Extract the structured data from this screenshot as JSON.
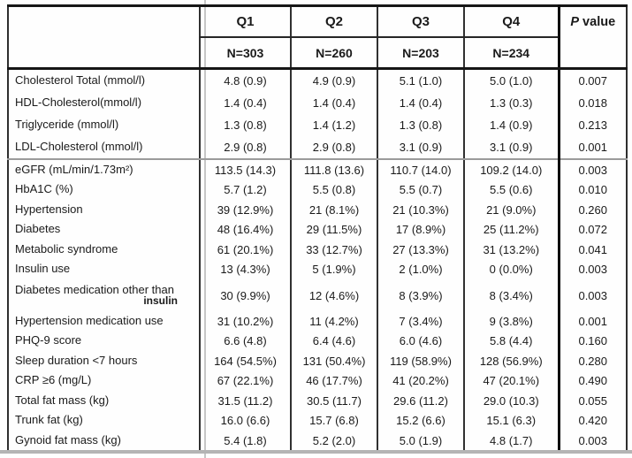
{
  "table": {
    "quartiles": [
      {
        "label": "Q1",
        "n": "N=303"
      },
      {
        "label": "Q2",
        "n": "N=260"
      },
      {
        "label": "Q3",
        "n": "N=203"
      },
      {
        "label": "Q4",
        "n": "N=234"
      }
    ],
    "p_header": {
      "italic": "P",
      "rest": " value"
    },
    "rows": [
      {
        "label": "Cholesterol Total (mmol/l)",
        "q1": "4.8 (0.9)",
        "q2": "4.9 (0.9)",
        "q3": "5.1 (1.0)",
        "q4": "5.0 (1.0)",
        "p": "0.007"
      },
      {
        "label": "HDL-Cholesterol(mmol/l)",
        "q1": "1.4 (0.4)",
        "q2": "1.4 (0.4)",
        "q3": "1.4 (0.4)",
        "q4": "1.3 (0.3)",
        "p": "0.018"
      },
      {
        "label": "Triglyceride (mmol/l)",
        "q1": "1.3 (0.8)",
        "q2": "1.4 (1.2)",
        "q3": "1.3 (0.8)",
        "q4": "1.4 (0.9)",
        "p": "0.213"
      },
      {
        "label": "LDL-Cholesterol (mmol/l)",
        "q1": "2.9 (0.8)",
        "q2": "2.9 (0.8)",
        "q3": "3.1 (0.9)",
        "q4": "3.1 (0.9)",
        "p": "0.001",
        "section_end": true
      },
      {
        "label": "eGFR (mL/min/1.73m²)",
        "q1": "113.5 (14.3)",
        "q2": "111.8 (13.6)",
        "q3": "110.7 (14.0)",
        "q4": "109.2 (14.0)",
        "p": "0.003"
      },
      {
        "label": "HbA1C (%)",
        "q1": "5.7 (1.2)",
        "q2": "5.5 (0.8)",
        "q3": "5.5 (0.7)",
        "q4": "5.5 (0.6)",
        "p": "0.010"
      },
      {
        "label": "Hypertension",
        "q1": "39 (12.9%)",
        "q2": "21 (8.1%)",
        "q3": "21 (10.3%)",
        "q4": "21 (9.0%)",
        "p": "0.260"
      },
      {
        "label": "Diabetes",
        "q1": "48 (16.4%)",
        "q2": "29 (11.5%)",
        "q3": "17 (8.9%)",
        "q4": "25 (11.2%)",
        "p": "0.072"
      },
      {
        "label": "Metabolic syndrome",
        "q1": "61 (20.1%)",
        "q2": "33 (12.7%)",
        "q3": "27 (13.3%)",
        "q4": "31 (13.2%)",
        "p": "0.041"
      },
      {
        "label": "Insulin use",
        "q1": "13 (4.3%)",
        "q2": "5 (1.9%)",
        "q3": "2 (1.0%)",
        "q4": "0 (0.0%)",
        "p": "0.003"
      },
      {
        "label": "Diabetes medication other than",
        "label_line2": "insulin",
        "q1": "30 (9.9%)",
        "q2": "12 (4.6%)",
        "q3": "8 (3.9%)",
        "q4": "8 (3.4%)",
        "p": "0.003"
      },
      {
        "label": "Hypertension medication use",
        "q1": "31 (10.2%)",
        "q2": "11 (4.2%)",
        "q3": "7 (3.4%)",
        "q4": "9 (3.8%)",
        "p": "0.001"
      },
      {
        "label": "PHQ-9 score",
        "q1": "6.6 (4.8)",
        "q2": "6.4 (4.6)",
        "q3": "6.0 (4.6)",
        "q4": "5.8 (4.4)",
        "p": "0.160"
      },
      {
        "label": "Sleep duration <7 hours",
        "q1": "164 (54.5%)",
        "q2": "131 (50.4%)",
        "q3": "119 (58.9%)",
        "q4": "128 (56.9%)",
        "p": "0.280"
      },
      {
        "label": "CRP ≥6 (mg/L)",
        "q1": "67 (22.1%)",
        "q2": "46 (17.7%)",
        "q3": "41 (20.2%)",
        "q4": "47 (20.1%)",
        "p": "0.490"
      },
      {
        "label": "Total fat mass (kg)",
        "q1": "31.5 (11.2)",
        "q2": "30.5 (11.7)",
        "q3": "29.6 (11.2)",
        "q4": "29.0 (10.3)",
        "p": "0.055"
      },
      {
        "label": "Trunk fat (kg)",
        "q1": "16.0 (6.6)",
        "q2": "15.7 (6.8)",
        "q3": "15.2 (6.6)",
        "q4": "15.1 (6.3)",
        "p": "0.420"
      },
      {
        "label": "Gynoid fat mass (kg)",
        "q1": "5.4 (1.8)",
        "q2": "5.2 (2.0)",
        "q3": "5.0 (1.9)",
        "q4": "4.8 (1.7)",
        "p": "0.003"
      }
    ]
  },
  "colors": {
    "border_dark": "#161616",
    "border_medium": "#303030",
    "p_column_rule": "#0d0d0d",
    "section_divider": "#9b9b9b",
    "artifact_gray": "#c6c6c6",
    "bottom_rule_gray": "#b4b4b4",
    "text": "#1a1a1a",
    "background": "#fefefe"
  }
}
